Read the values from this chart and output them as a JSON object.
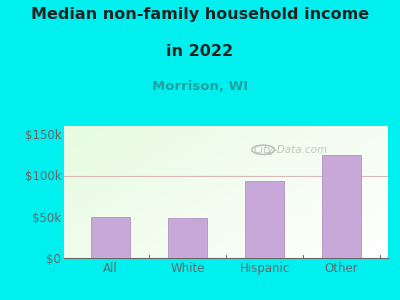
{
  "title_line1": "Median non-family household income",
  "title_line2": "in 2022",
  "subtitle": "Morrison, WI",
  "categories": [
    "All",
    "White",
    "Hispanic",
    "Other"
  ],
  "values": [
    50000,
    48000,
    93000,
    125000
  ],
  "bar_color": "#c8a8d8",
  "bar_edge_color": "#b898c8",
  "bg_color": "#00f0f0",
  "title_color": "#222222",
  "subtitle_color": "#20a0a0",
  "axis_color": "#666666",
  "tick_color": "#666666",
  "grid_color": "#d8b8b8",
  "watermark_color": "#b8c4b8",
  "yticks": [
    0,
    50000,
    100000,
    150000
  ],
  "ytick_labels": [
    "$0",
    "$50k",
    "$100k",
    "$150k"
  ],
  "ylim": [
    0,
    160000
  ],
  "title_fontsize": 11.5,
  "subtitle_fontsize": 9.5,
  "tick_fontsize": 8.5
}
